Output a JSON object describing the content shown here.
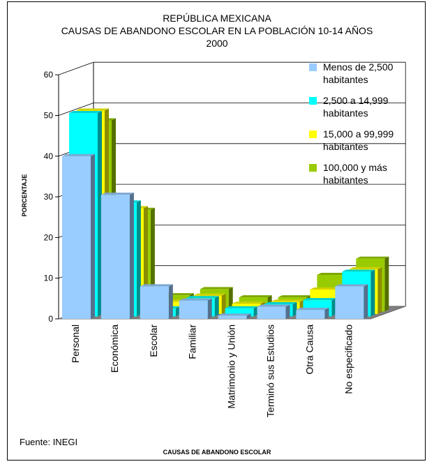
{
  "chart_data": {
    "type": "bar",
    "title_lines": [
      "REPÚBLICA MEXICANA",
      "CAUSAS DE ABANDONO ESCOLAR EN LA POBLACIÓN 10-14 AÑOS",
      "2000"
    ],
    "xlabel": "CAUSAS DE ABANDONO ESCOLAR",
    "ylabel": "PORCENTAJE",
    "ylim": [
      0,
      60
    ],
    "yticks": [
      0,
      10,
      20,
      30,
      40,
      50,
      60
    ],
    "categories": [
      "Personal",
      "Económica",
      "Escolar",
      "Familiar",
      "Matrimonio y Unión",
      "Terminó sus Estudios",
      "Otra Causa",
      "No especificado"
    ],
    "series": [
      {
        "name": "Menos de 2,500 habitantes",
        "name_lines": [
          "Menos de 2,500",
          "habitantes"
        ],
        "color": "#99ccff",
        "values": [
          40,
          30.5,
          8,
          4.5,
          0.8,
          3,
          2.2,
          8
        ]
      },
      {
        "name": "2,500 a 14,999 habitantes",
        "name_lines": [
          "2,500 a 14,999",
          "habitantes"
        ],
        "color": "#00ffff",
        "values": [
          50,
          28,
          2,
          4.5,
          2,
          3,
          4,
          11
        ]
      },
      {
        "name": "15,000 a 99,999 habitantes",
        "name_lines": [
          "15,000 a 99,999",
          "habitantes"
        ],
        "color": "#ffff00",
        "values": [
          50,
          26,
          3,
          4.5,
          2.5,
          3,
          6,
          11
        ]
      },
      {
        "name": "100,000 y más habitantes",
        "name_lines": [
          "100,000 y más",
          "habitantes"
        ],
        "color": "#99cc00",
        "values": [
          47,
          25,
          4,
          5.5,
          3.5,
          3.5,
          9,
          13
        ]
      }
    ],
    "legend_position": "top-right",
    "grid": true
  },
  "source": "Fuente: INEGI"
}
